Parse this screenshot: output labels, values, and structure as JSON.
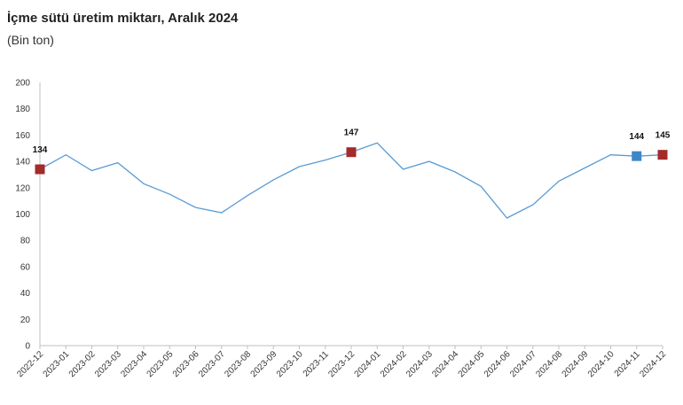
{
  "title": "İçme sütü üretim miktarı, Aralık 2024",
  "subtitle": "(Bin ton)",
  "chart_data": {
    "type": "line",
    "title": "İçme sütü üretim miktarı, Aralık 2024",
    "subtitle": "(Bin ton)",
    "xlabel": "",
    "ylabel": "",
    "ylim": [
      0,
      200
    ],
    "yticks": [
      0,
      20,
      40,
      60,
      80,
      100,
      120,
      140,
      160,
      180,
      200
    ],
    "grid": false,
    "categories": [
      "2022-12",
      "2023-01",
      "2023-02",
      "2023-03",
      "2023-04",
      "2023-05",
      "2023-06",
      "2023-07",
      "2023-08",
      "2023-09",
      "2023-10",
      "2023-11",
      "2023-12",
      "2024-01",
      "2024-02",
      "2024-03",
      "2024-04",
      "2024-05",
      "2024-06",
      "2024-07",
      "2024-08",
      "2024-09",
      "2024-10",
      "2024-11",
      "2024-12"
    ],
    "series": [
      {
        "values": [
          134,
          145,
          133,
          139,
          123,
          115,
          105,
          101,
          114,
          126,
          136,
          141,
          147,
          154,
          134,
          140,
          132,
          121,
          97,
          107,
          125,
          135,
          145,
          144,
          145
        ],
        "color": "#5b9bd5"
      }
    ],
    "highlighted_points": [
      {
        "category": "2022-12",
        "value": 134,
        "label": "134",
        "marker": "square",
        "color": "#a52a2a"
      },
      {
        "category": "2023-12",
        "value": 147,
        "label": "147",
        "marker": "square",
        "color": "#a52a2a"
      },
      {
        "category": "2024-11",
        "value": 144,
        "label": "144",
        "marker": "square",
        "color": "#3c87c8"
      },
      {
        "category": "2024-12",
        "value": 145,
        "label": "145",
        "marker": "square",
        "color": "#a52a2a"
      }
    ]
  }
}
